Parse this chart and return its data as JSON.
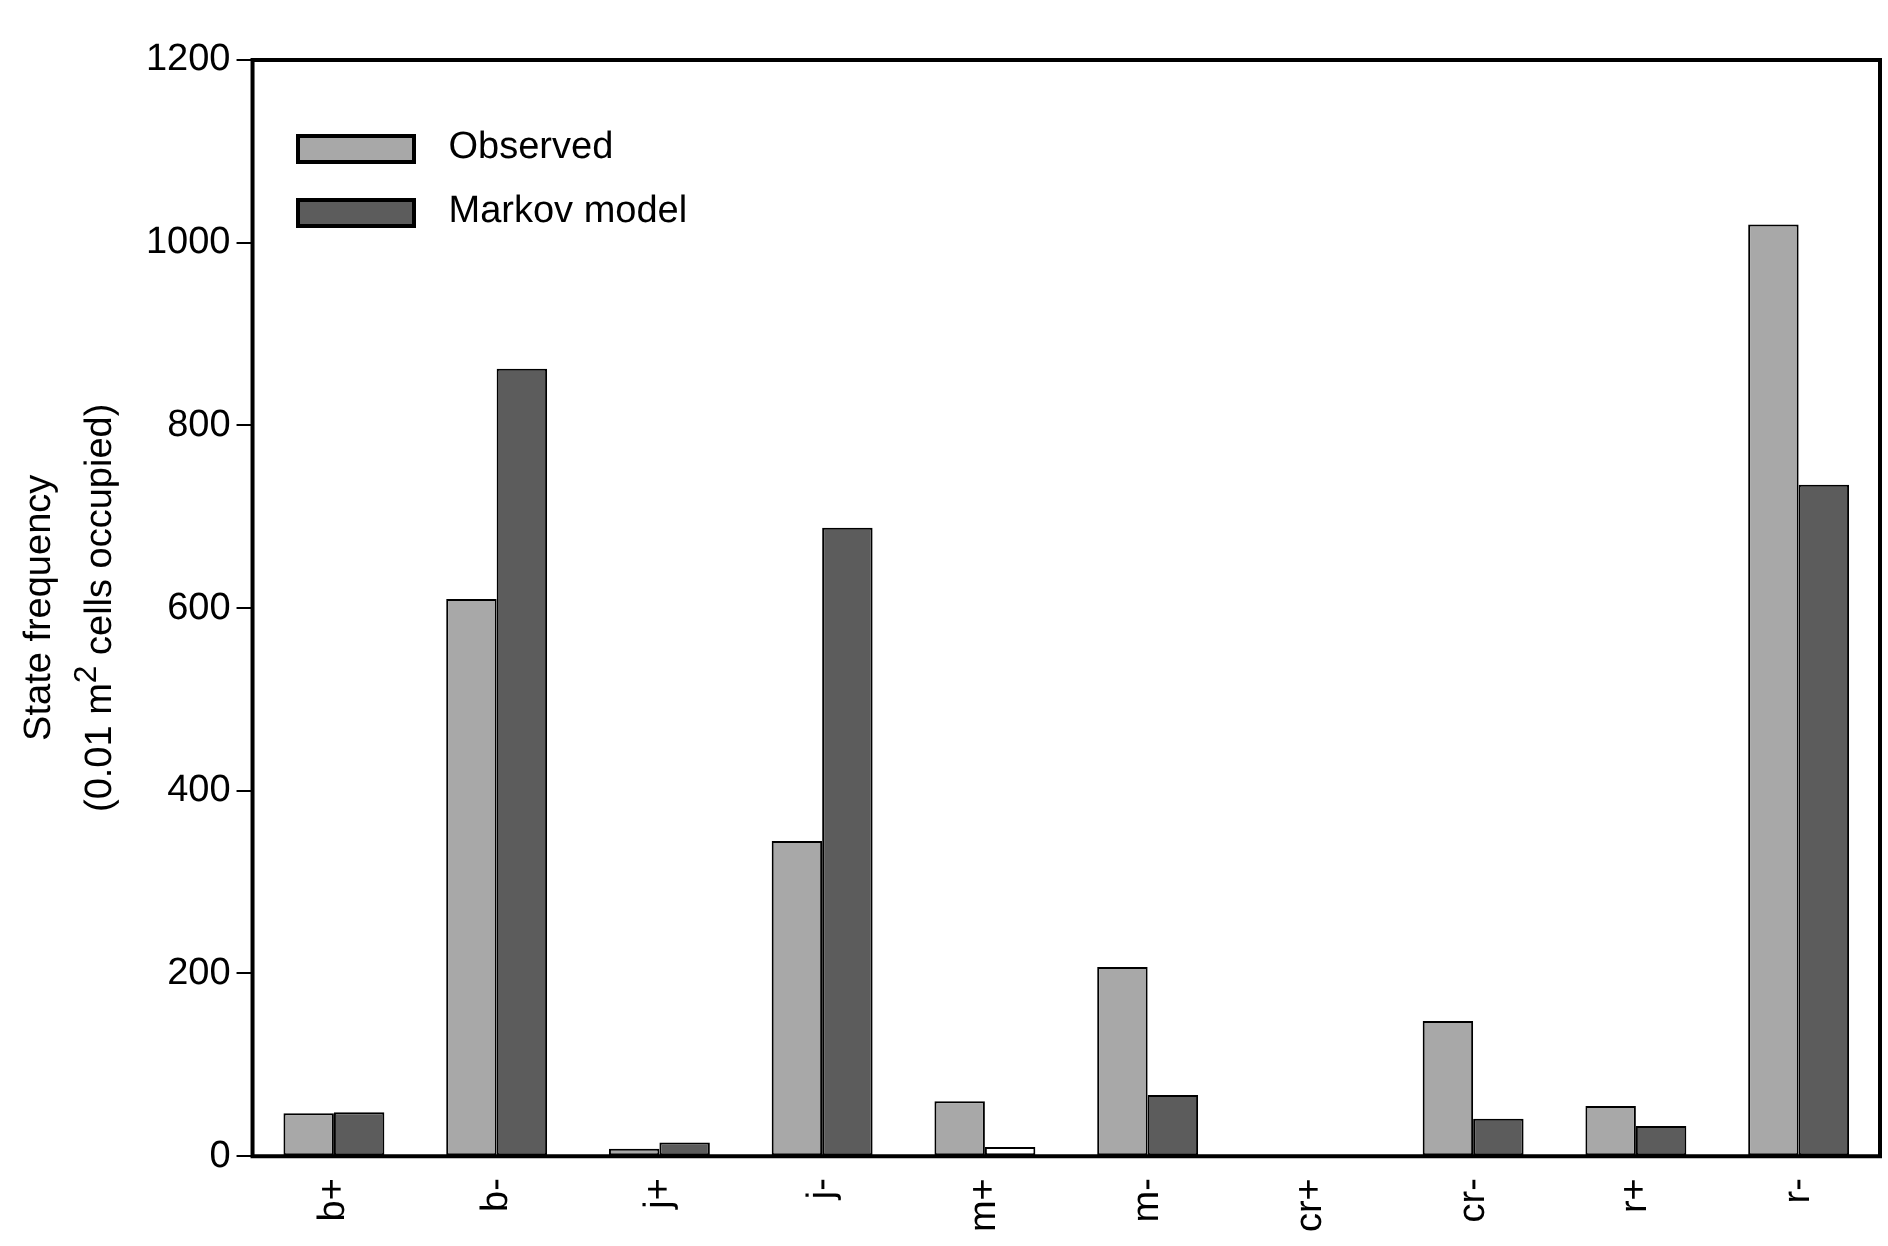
{
  "chart_data": {
    "type": "bar",
    "ylabel": "State frequency\n(0.01 m$^{2}$ cells occupied)",
    "categories": [
      "b+",
      "b-",
      "j+",
      "j-",
      "m+",
      "m-",
      "cr+",
      "cr-",
      "r+",
      "r-"
    ],
    "series": [
      {
        "name": "Observed",
        "color": "#a8a8a8",
        "values": [
          47,
          610,
          8,
          345,
          60,
          207,
          0,
          148,
          55,
          1020
        ]
      },
      {
        "name": "Markov model",
        "color": "#5c5c5c",
        "colors": [
          "#5c5c5c",
          "#5c5c5c",
          "#5c5c5c",
          "#5c5c5c",
          "#ffffff",
          "#5c5c5c",
          "#5c5c5c",
          "#5c5c5c",
          "#5c5c5c",
          "#5c5c5c"
        ],
        "values": [
          48,
          862,
          15,
          688,
          10,
          67,
          0,
          41,
          33,
          735
        ]
      }
    ],
    "ylim": [
      0,
      1200
    ],
    "yticks": [
      0,
      200,
      400,
      600,
      800,
      1000,
      1200
    ],
    "grid": false,
    "legend": "top left"
  }
}
